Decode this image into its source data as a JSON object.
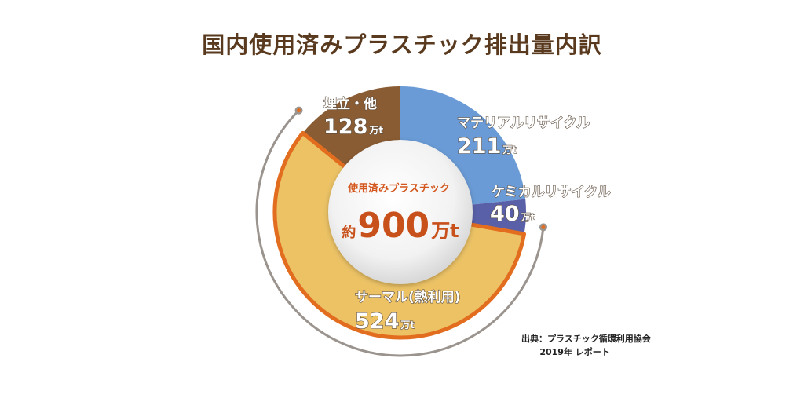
{
  "title": "国内使用済みプラスチック排出量内訳",
  "chart_data": {
    "type": "pie",
    "variant": "donut",
    "title": "国内使用済みプラスチック排出量内訳",
    "unit": "万t",
    "slices": [
      {
        "name": "マテリアルリサイクル",
        "value": 211,
        "color": "#6a9bd6"
      },
      {
        "name": "ケミカルリサイクル",
        "value": 40,
        "color": "#5960a8"
      },
      {
        "name": "サーマル(熱利用)",
        "value": 524,
        "color": "#ecc265",
        "highlight": true
      },
      {
        "name": "埋立・他",
        "value": 128,
        "color": "#8a5c33"
      }
    ],
    "center": {
      "label": "使用済みプラスチック",
      "prefix": "約",
      "value": "900",
      "unit": "万t"
    }
  },
  "source": {
    "line1": "出典：プラスチック循環利用協会",
    "line2": "2019年 レポート"
  }
}
